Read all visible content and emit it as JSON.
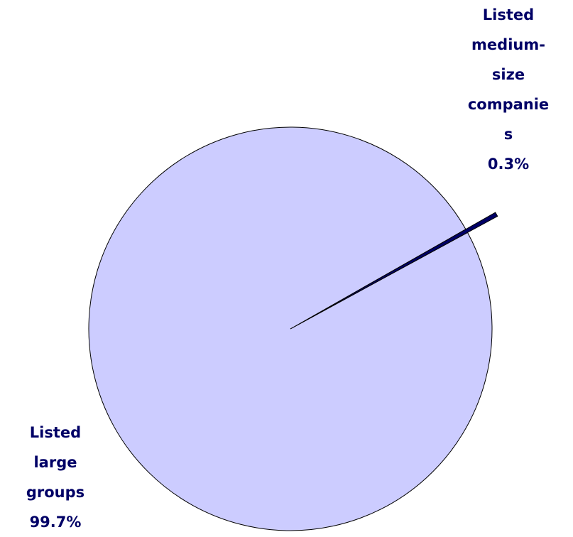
{
  "chart_data": {
    "type": "pie",
    "categories": [
      "Listed medium-size companies",
      "Listed large groups"
    ],
    "values": [
      0.3,
      99.7
    ],
    "value_labels": [
      "0.3%",
      "99.7%"
    ],
    "colors": [
      "#000066",
      "#ccccff"
    ]
  }
}
